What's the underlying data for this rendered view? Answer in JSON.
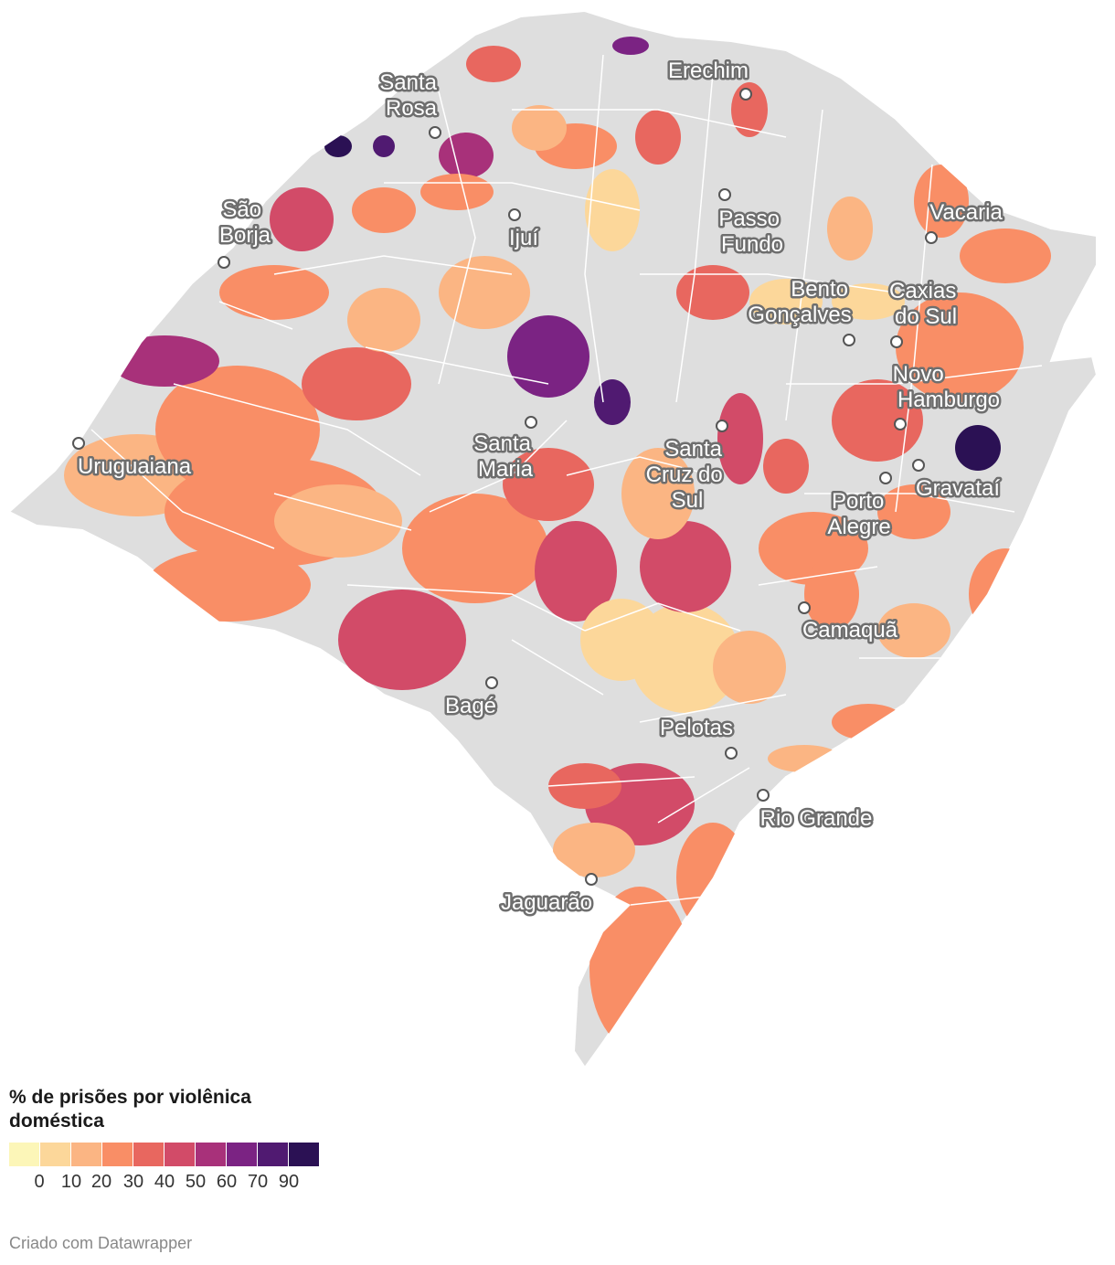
{
  "legend": {
    "title": "% de prisões por violênica doméstica",
    "colors": [
      "#fcf6b8",
      "#fcd79a",
      "#fbb583",
      "#f98e66",
      "#e8675f",
      "#d24b68",
      "#a8317a",
      "#7b2383",
      "#501a71",
      "#2b1154"
    ],
    "tick_labels": [
      "0",
      "10",
      "20",
      "30",
      "40",
      "50",
      "60",
      "70",
      "90"
    ]
  },
  "cities": [
    {
      "name_lines": [
        "Santa",
        "Rosa"
      ]
    },
    {
      "name_lines": [
        "Erechim"
      ]
    },
    {
      "name_lines": [
        "São",
        "Borja"
      ]
    },
    {
      "name_lines": [
        "Ijuí"
      ]
    },
    {
      "name_lines": [
        "Passo",
        "Fundo"
      ]
    },
    {
      "name_lines": [
        "Vacaria"
      ]
    },
    {
      "name_lines": [
        "Bento",
        "Gonçalves"
      ]
    },
    {
      "name_lines": [
        "Caxias",
        "do Sul"
      ]
    },
    {
      "name_lines": [
        "Novo",
        "Hamburgo"
      ]
    },
    {
      "name_lines": [
        "Uruguaiana"
      ]
    },
    {
      "name_lines": [
        "Santa",
        "Maria"
      ]
    },
    {
      "name_lines": [
        "Santa",
        "Cruz do",
        "Sul"
      ]
    },
    {
      "name_lines": [
        "Gravataí"
      ]
    },
    {
      "name_lines": [
        "Porto",
        "Alegre"
      ]
    },
    {
      "name_lines": [
        "Camaquã"
      ]
    },
    {
      "name_lines": [
        "Bagé"
      ]
    },
    {
      "name_lines": [
        "Pelotas"
      ]
    },
    {
      "name_lines": [
        "Rio Grande"
      ]
    },
    {
      "name_lines": [
        "Jaguarão"
      ]
    }
  ],
  "credit": "Criado com Datawrapper"
}
